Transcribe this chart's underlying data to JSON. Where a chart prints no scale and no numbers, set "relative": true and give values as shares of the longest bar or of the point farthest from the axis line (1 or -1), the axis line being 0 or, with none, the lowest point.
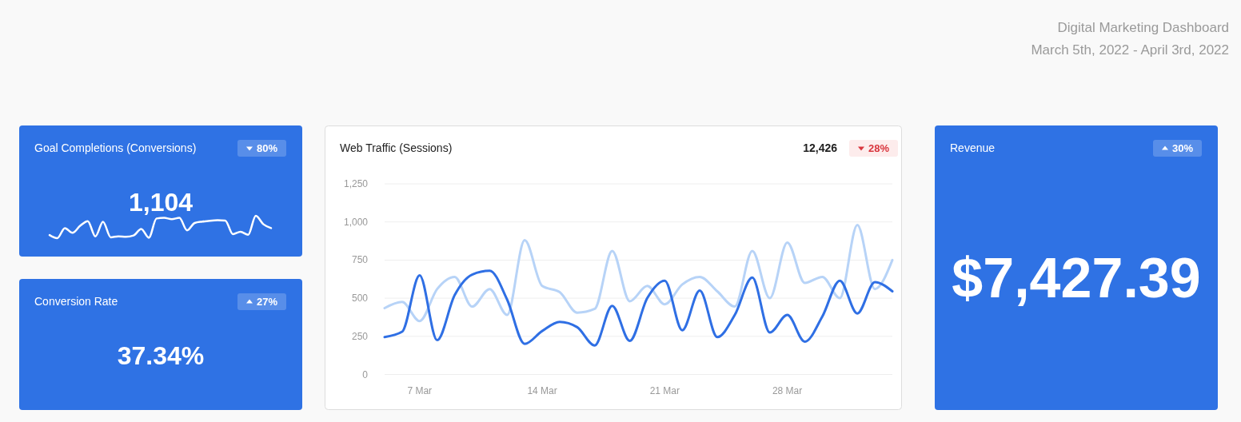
{
  "chart_data": [
    {
      "type": "other",
      "title": "Digital Marketing Dashboard",
      "subtitle": "March 5th, 2022 - April 3rd, 2022"
    },
    {
      "type": "other",
      "title": "Goal Completions (Conversions)",
      "annotations": [
        "1,104",
        "80%"
      ]
    },
    {
      "type": "line",
      "title": "Web Traffic (Sessions)",
      "grid": "y",
      "annotations": [
        "12,426",
        "28%"
      ],
      "x": [
        "2022-03-05",
        "2022-03-06",
        "2022-03-07",
        "2022-03-08",
        "2022-03-09",
        "2022-03-10",
        "2022-03-11",
        "2022-03-12",
        "2022-03-13",
        "2022-03-14",
        "2022-03-15",
        "2022-03-16",
        "2022-03-17",
        "2022-03-18",
        "2022-03-19",
        "2022-03-20",
        "2022-03-21",
        "2022-03-22",
        "2022-03-23",
        "2022-03-24",
        "2022-03-25",
        "2022-03-26",
        "2022-03-27",
        "2022-03-28",
        "2022-03-29",
        "2022-03-30",
        "2022-03-31",
        "2022-04-01",
        "2022-04-02",
        "2022-04-03"
      ],
      "xlim": [
        "2022-03-05",
        "2022-04-03"
      ],
      "xticks": [
        {
          "value": "2022-03-07",
          "label": "7 Mar"
        },
        {
          "value": "2022-03-14",
          "label": "14 Mar"
        },
        {
          "value": "2022-03-21",
          "label": "21 Mar"
        },
        {
          "value": "2022-03-28",
          "label": "28 Mar"
        }
      ],
      "ylim": [
        0,
        1250
      ],
      "yticks": [
        0,
        250,
        500,
        750,
        {
          "value": 1000,
          "label": "1,000"
        },
        {
          "value": 1250,
          "label": "1,250"
        }
      ],
      "series": [
        {
          "color": "#b7d3f7",
          "values": [
            435,
            475,
            350,
            560,
            640,
            445,
            560,
            390,
            880,
            580,
            540,
            405,
            430,
            810,
            480,
            580,
            460,
            590,
            640,
            545,
            445,
            810,
            500,
            865,
            600,
            640,
            500,
            980,
            560,
            750
          ]
        },
        {
          "color": "#2f6fe4",
          "values": [
            245,
            280,
            650,
            225,
            520,
            655,
            680,
            490,
            200,
            285,
            345,
            310,
            190,
            450,
            220,
            500,
            615,
            290,
            550,
            245,
            390,
            635,
            275,
            390,
            215,
            380,
            615,
            400,
            605,
            545
          ]
        }
      ]
    },
    {
      "type": "other",
      "title": "Revenue",
      "annotations": [
        "$7,427.39",
        "30%"
      ]
    },
    {
      "type": "other",
      "title": "Conversion Rate",
      "annotations": [
        "37.34%",
        "27%"
      ]
    },
    {
      "type": "line",
      "relative": true,
      "color": "#ffffff",
      "categories": [
        null,
        null,
        null,
        null,
        null,
        null,
        null,
        null,
        null,
        null,
        null,
        null,
        null,
        null,
        null,
        null,
        null,
        null,
        null,
        null,
        null,
        null,
        null,
        null,
        null,
        null,
        null,
        null,
        null,
        null
      ],
      "values": [
        0.14,
        0,
        0.45,
        0.24,
        0.55,
        0.76,
        0.08,
        0.73,
        0.04,
        0.08,
        0.06,
        0.12,
        0.41,
        0.02,
        0.88,
        0.91,
        0.85,
        0.91,
        0.35,
        0.68,
        0.74,
        0.78,
        0.8,
        0.79,
        0.18,
        0.29,
        0.15,
        1,
        0.62,
        0.45
      ]
    }
  ]
}
